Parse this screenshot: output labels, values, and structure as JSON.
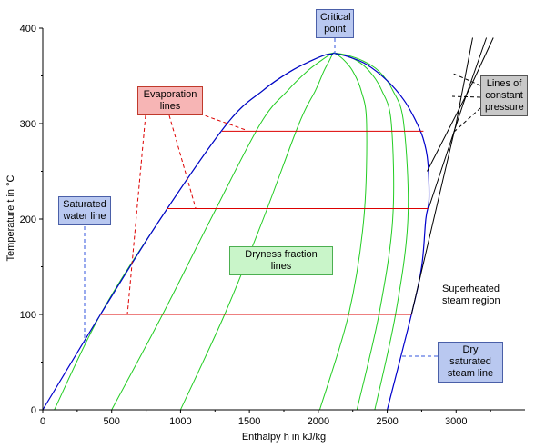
{
  "chart_data": {
    "type": "line",
    "title": "",
    "xlabel": "Enthalpy h in kJ/kg",
    "ylabel": "Temperature t in °C",
    "xlim": [
      0,
      3500
    ],
    "ylim": [
      0,
      400
    ],
    "xticks": [
      0,
      500,
      1000,
      1500,
      2000,
      2500,
      3000
    ],
    "yticks": [
      0,
      100,
      200,
      300,
      400
    ],
    "grid": false,
    "series": [
      {
        "name": "Saturated water line",
        "x": [
          0,
          419,
          853,
          1338,
          1600,
          1800,
          1950,
          2050,
          2100,
          2110
        ],
        "y": [
          0,
          100,
          200,
          300,
          335,
          355,
          366,
          372,
          373,
          374
        ]
      },
      {
        "name": "Dry saturated steam line",
        "x": [
          2110,
          2220,
          2350,
          2500,
          2620,
          2700,
          2760,
          2795,
          2803,
          2780,
          2750,
          2676,
          2500
        ],
        "y": [
          374,
          370,
          362,
          345,
          325,
          305,
          285,
          260,
          220,
          200,
          150,
          100,
          0
        ]
      },
      {
        "name": "Evaporation lines",
        "segments": [
          {
            "t": 100,
            "h_start": 419,
            "h_end": 2676
          },
          {
            "t": 211,
            "h_start": 900,
            "h_end": 2797
          },
          {
            "t": 292,
            "h_start": 1300,
            "h_end": 2763
          }
        ]
      },
      {
        "name": "Dryness fraction lines",
        "lines": [
          {
            "x": [
              84,
              419,
              853,
              1338,
              1600,
              1800,
              1950,
              2050,
              2110
            ],
            "y": [
              0,
              100,
              200,
              300,
              335,
              355,
              366,
              372,
              374
            ]
          },
          {
            "x": [
              500,
              870,
              1220,
              1580,
              1780,
              1920,
              2020,
              2080,
              2110
            ],
            "y": [
              0,
              100,
              200,
              300,
              335,
              355,
              366,
              372,
              374
            ]
          },
          {
            "x": [
              1000,
              1320,
              1600,
              1860,
              1980,
              2040,
              2080,
              2100,
              2110
            ],
            "y": [
              0,
              100,
              200,
              300,
              335,
              355,
              366,
              372,
              374
            ]
          },
          {
            "x": [
              2010,
              2220,
              2330,
              2350,
              2310,
              2250,
              2190,
              2140,
              2110
            ],
            "y": [
              0,
              100,
              200,
              300,
              335,
              355,
              366,
              372,
              374
            ]
          },
          {
            "x": [
              2280,
              2440,
              2540,
              2530,
              2460,
              2370,
              2280,
              2180,
              2110
            ],
            "y": [
              0,
              100,
              200,
              300,
              335,
              355,
              366,
              372,
              374
            ]
          },
          {
            "x": [
              2410,
              2560,
              2650,
              2620,
              2540,
              2440,
              2320,
              2200,
              2110
            ],
            "y": [
              0,
              100,
              200,
              300,
              335,
              355,
              366,
              372,
              374
            ]
          }
        ]
      },
      {
        "name": "Lines of constant pressure",
        "lines": [
          {
            "x": [
              2676,
              3000,
              3120
            ],
            "y": [
              100,
              300,
              390
            ]
          },
          {
            "x": [
              2800,
              3050,
              3220
            ],
            "y": [
              211,
              320,
              390
            ]
          },
          {
            "x": [
              2790,
              3110,
              3270
            ],
            "y": [
              250,
              340,
              390
            ]
          }
        ]
      }
    ]
  },
  "annotations": {
    "critical_point": "Critical\npoint",
    "evaporation_lines": "Evaporation\nlines",
    "saturated_water_line": "Saturated\nwater line",
    "dryness_fraction_lines": "Dryness fraction lines",
    "lines_of_constant_pressure": "Lines of\nconstant\npressure",
    "superheated_steam_region": "Superheated\nsteam region",
    "dry_saturated_steam_line": "Dry saturated\nsteam line"
  },
  "colors": {
    "saturation_curve": "#0000cc",
    "dryness_lines": "#22cc22",
    "evaporation_lines": "#dd0000",
    "pressure_lines": "#000000",
    "blue_leader": "#3355dd",
    "red_leader": "#dd0000",
    "black_leader": "#000000"
  }
}
